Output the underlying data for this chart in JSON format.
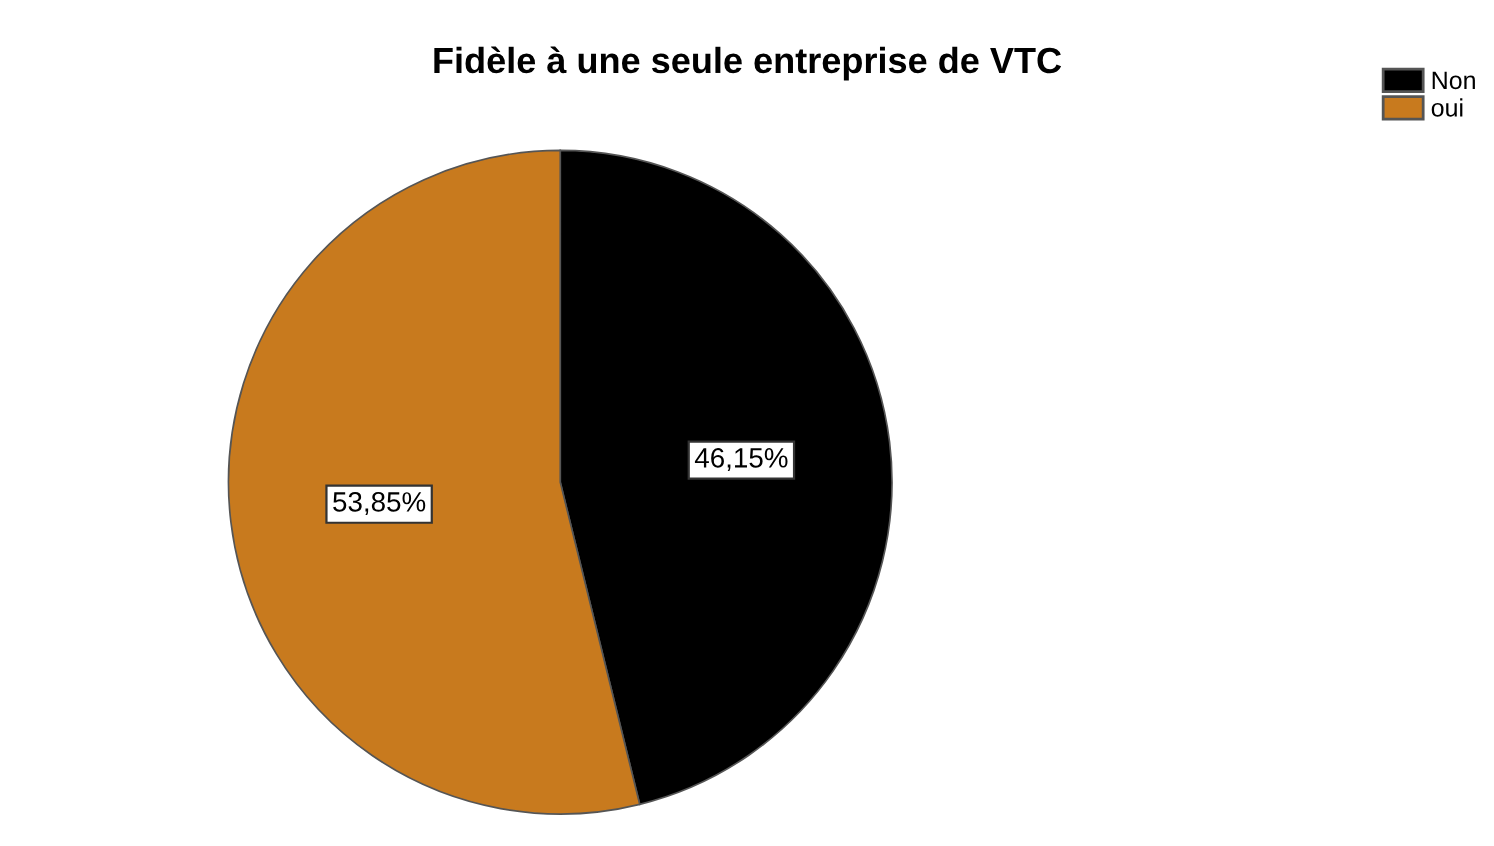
{
  "chart_data": {
    "type": "pie",
    "title": "Fidèle à une seule entreprise de VTC",
    "categories": [
      "Non",
      "oui"
    ],
    "values": [
      46.15,
      53.85
    ],
    "value_labels": [
      "46,15%",
      "53,85%"
    ],
    "colors": [
      "#000000",
      "#c87a1e"
    ],
    "legend": "top right"
  }
}
